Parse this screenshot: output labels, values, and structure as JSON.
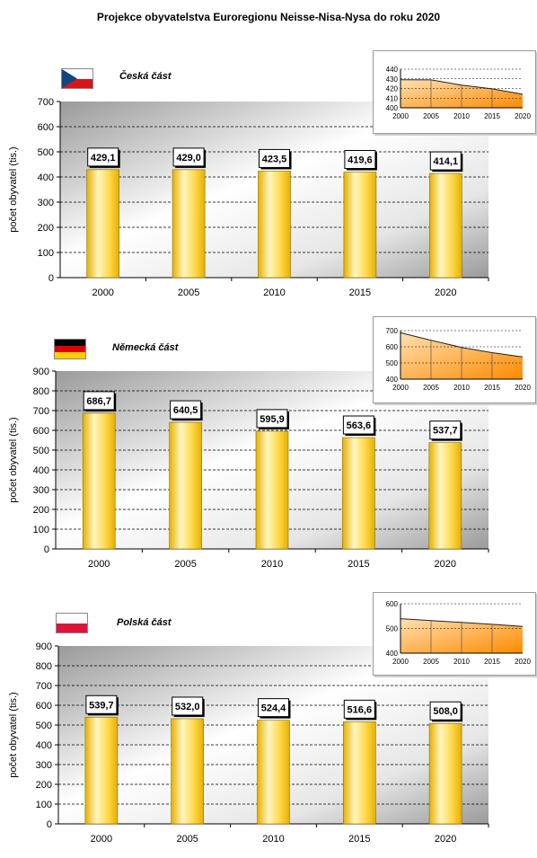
{
  "title": "Projekce obyvatelstva Euroregionu Neisse-Nisa-Nysa do roku 2020",
  "colors": {
    "bar_light": "#fff6c0",
    "bar_mid": "#ffd84a",
    "bar_dark": "#e6b000",
    "area_light": "#ffe0b0",
    "area_dark": "#ff8a00",
    "plot_dark": "#9a9a9a",
    "plot_light": "#ffffff"
  },
  "chart_data": [
    {
      "type": "bar",
      "region": "Česká část",
      "flag": "flag-czech",
      "ylabel": "počet obyvatel (tis.)",
      "categories": [
        "2000",
        "2005",
        "2010",
        "2015",
        "2020"
      ],
      "values": [
        429.1,
        429.0,
        423.5,
        419.6,
        414.1
      ],
      "value_labels": [
        "429,1",
        "429,0",
        "423,5",
        "419,6",
        "414,1"
      ],
      "ylim": [
        0,
        700
      ],
      "yticks": [
        "0",
        "100",
        "200",
        "300",
        "400",
        "500",
        "600",
        "700"
      ],
      "grid": true,
      "inset": {
        "type": "area",
        "categories": [
          "2000",
          "2005",
          "2010",
          "2015",
          "2020"
        ],
        "ylim": [
          400,
          440
        ],
        "yticks": [
          "400",
          "410",
          "420",
          "430",
          "440"
        ]
      }
    },
    {
      "type": "bar",
      "region": "Německá část",
      "flag": "flag-german",
      "ylabel": "počet obyvatel (tis.)",
      "categories": [
        "2000",
        "2005",
        "2010",
        "2015",
        "2020"
      ],
      "values": [
        686.7,
        640.5,
        595.9,
        563.6,
        537.7
      ],
      "value_labels": [
        "686,7",
        "640,5",
        "595,9",
        "563,6",
        "537,7"
      ],
      "ylim": [
        0,
        900
      ],
      "yticks": [
        "0",
        "100",
        "200",
        "300",
        "400",
        "500",
        "600",
        "700",
        "800",
        "900"
      ],
      "grid": true,
      "inset": {
        "type": "area",
        "categories": [
          "2000",
          "2005",
          "2010",
          "2015",
          "2020"
        ],
        "ylim": [
          400,
          700
        ],
        "yticks": [
          "400",
          "500",
          "600",
          "700"
        ]
      }
    },
    {
      "type": "bar",
      "region": "Polská část",
      "flag": "flag-polish",
      "ylabel": "počet obyvatel (tis.)",
      "categories": [
        "2000",
        "2005",
        "2010",
        "2015",
        "2020"
      ],
      "values": [
        539.7,
        532.0,
        524.4,
        516.6,
        508.0
      ],
      "value_labels": [
        "539,7",
        "532,0",
        "524,4",
        "516,6",
        "508,0"
      ],
      "ylim": [
        0,
        900
      ],
      "yticks": [
        "0",
        "100",
        "200",
        "300",
        "400",
        "500",
        "600",
        "700",
        "800",
        "900"
      ],
      "grid": true,
      "inset": {
        "type": "area",
        "categories": [
          "2000",
          "2005",
          "2010",
          "2015",
          "2020"
        ],
        "ylim": [
          400,
          600
        ],
        "yticks": [
          "400",
          "500",
          "600"
        ]
      }
    }
  ]
}
